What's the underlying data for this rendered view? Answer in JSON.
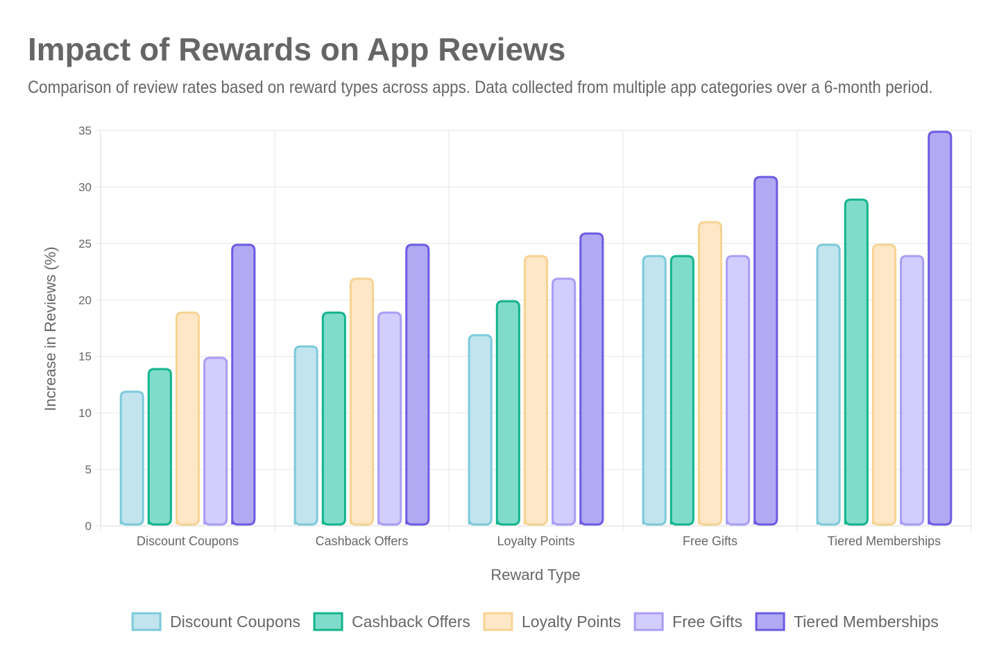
{
  "chart_data": {
    "type": "bar",
    "title": "Impact of Rewards on App Reviews",
    "subtitle": "Comparison of review rates based on reward types across apps. Data collected from multiple app categories over a 6-month period.",
    "xlabel": "Reward Type",
    "ylabel": "Increase in Reviews (%)",
    "ylim": [
      0,
      35
    ],
    "yticks": [
      0,
      5,
      10,
      15,
      20,
      25,
      30,
      35
    ],
    "grid": true,
    "legend": "bottom-center",
    "categories": [
      "Discount Coupons",
      "Cashback Offers",
      "Loyalty Points",
      "Free Gifts",
      "Tiered Memberships"
    ],
    "series": [
      {
        "name": "Discount Coupons",
        "values": [
          12,
          16,
          17,
          24,
          25
        ],
        "fill": "#c1e4ee",
        "stroke": "#7ccadb"
      },
      {
        "name": "Cashback Offers",
        "values": [
          14,
          19,
          20,
          24,
          29
        ],
        "fill": "#80dcca",
        "stroke": "#12b48c"
      },
      {
        "name": "Loyalty Points",
        "values": [
          19,
          22,
          24,
          27,
          25
        ],
        "fill": "#fde7c6",
        "stroke": "#f7d392"
      },
      {
        "name": "Free Gifts",
        "values": [
          15,
          19,
          22,
          24,
          24
        ],
        "fill": "#d2cdfc",
        "stroke": "#a89df5"
      },
      {
        "name": "Tiered Memberships",
        "values": [
          25,
          25,
          26,
          31,
          35
        ],
        "fill": "#b1aaf2",
        "stroke": "#6d5ae3"
      }
    ]
  }
}
